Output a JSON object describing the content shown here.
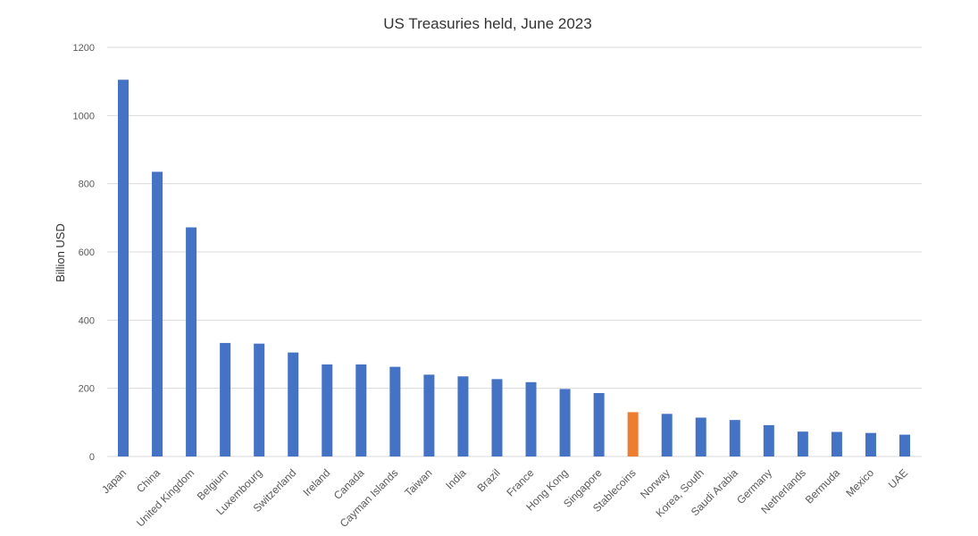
{
  "chart_data": {
    "type": "bar",
    "title": "US Treasuries held, June 2023",
    "xlabel": "",
    "ylabel": "Billion USD",
    "ylim": [
      0,
      1200
    ],
    "yticks": [
      0,
      200,
      400,
      600,
      800,
      1000,
      1200
    ],
    "grid": true,
    "legend": "none",
    "categories": [
      "Japan",
      "China",
      "United Kingdom",
      "Belgium",
      "Luxembourg",
      "Switzerland",
      "Ireland",
      "Canada",
      "Cayman Islands",
      "Taiwan",
      "India",
      "Brazil",
      "France",
      "Hong Kong",
      "Singapore",
      "Stablecoins",
      "Norway",
      "Korea, South",
      "Saudi Arabia",
      "Germany",
      "Netherlands",
      "Bermuda",
      "Mexico",
      "UAE"
    ],
    "values": [
      1105,
      835,
      672,
      333,
      331,
      305,
      270,
      270,
      263,
      240,
      235,
      227,
      218,
      198,
      186,
      130,
      125,
      114,
      107,
      92,
      73,
      72,
      69,
      64
    ],
    "colors": {
      "default": "#4472C4",
      "highlight": "#ED7D31",
      "highlight_category": "Stablecoins"
    }
  }
}
